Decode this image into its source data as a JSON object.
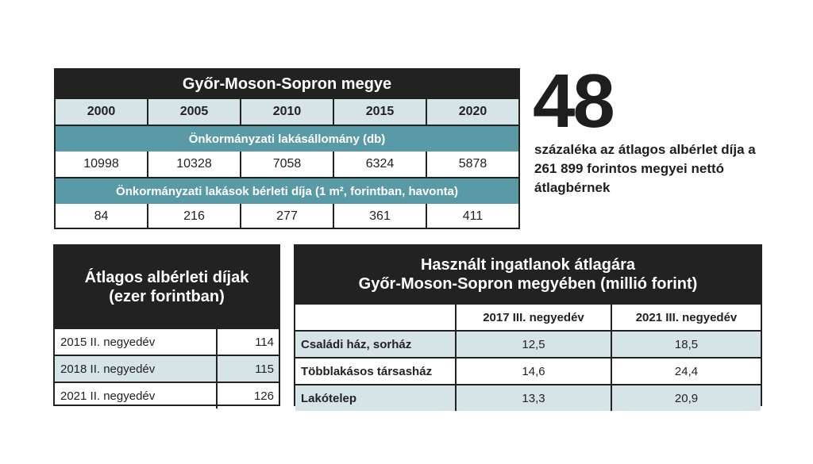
{
  "table1": {
    "title": "Győr-Moson-Sopron megye",
    "years": [
      "2000",
      "2005",
      "2010",
      "2015",
      "2020"
    ],
    "section1_label": "Önkormányzati lakásállomány (db)",
    "section1_values": [
      "10998",
      "10328",
      "7058",
      "6324",
      "5878"
    ],
    "section2_label": "Önkormányzati lakások bérleti díja (1 m², forintban, havonta)",
    "section2_values": [
      "84",
      "216",
      "277",
      "361",
      "411"
    ]
  },
  "callout": {
    "number": "48",
    "text": "százaléka az átlagos albérlet díja a 261 899 forintos megyei nettó átlagbérnek"
  },
  "table2": {
    "title_line1": "Átlagos albérleti díjak",
    "title_line2": "(ezer forintban)",
    "rows": [
      {
        "label": "2015 II. negyedév",
        "value": "114"
      },
      {
        "label": "2018 II. negyedév",
        "value": "115"
      },
      {
        "label": "2021 II. negyedév",
        "value": "126"
      }
    ]
  },
  "table3": {
    "title_line1": "Használt ingatlanok átlagára",
    "title_line2": "Győr-Moson-Sopron megyében (millió forint)",
    "headers": [
      "",
      "2017 III. negyedév",
      "2021 III. negyedév"
    ],
    "rows": [
      {
        "label": "Családi ház, sorház",
        "v2017": "12,5",
        "v2021": "18,5"
      },
      {
        "label": "Többlakásos társasház",
        "v2017": "14,6",
        "v2021": "24,4"
      },
      {
        "label": "Lakótelep",
        "v2017": "13,3",
        "v2021": "20,9"
      }
    ]
  },
  "colors": {
    "dark": "#222222",
    "teal": "#5a9aa6",
    "light_blue": "#d6e4e8"
  }
}
